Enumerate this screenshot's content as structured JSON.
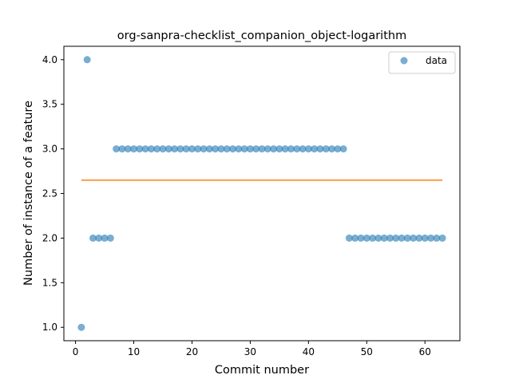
{
  "chart_data": {
    "type": "scatter",
    "title": "org-sanpra-checklist_companion_object-logarithm",
    "xlabel": "Commit number",
    "ylabel": "Number of instance of a feature",
    "xlim": [
      -2,
      66
    ],
    "ylim": [
      0.85,
      4.15
    ],
    "xticks": [
      0,
      10,
      20,
      30,
      40,
      50,
      60
    ],
    "yticks": [
      1.0,
      1.5,
      2.0,
      2.5,
      3.0,
      3.5,
      4.0
    ],
    "xtick_labels": [
      "0",
      "10",
      "20",
      "30",
      "40",
      "50",
      "60"
    ],
    "ytick_labels": [
      "1.0",
      "1.5",
      "2.0",
      "2.5",
      "3.0",
      "3.5",
      "4.0"
    ],
    "legend_position": "top-right",
    "series": [
      {
        "name": "data",
        "kind": "scatter",
        "color": "#1f77b4",
        "x": [
          1,
          2,
          3,
          4,
          5,
          6,
          7,
          8,
          9,
          10,
          11,
          12,
          13,
          14,
          15,
          16,
          17,
          18,
          19,
          20,
          21,
          22,
          23,
          24,
          25,
          26,
          27,
          28,
          29,
          30,
          31,
          32,
          33,
          34,
          35,
          36,
          37,
          38,
          39,
          40,
          41,
          42,
          43,
          44,
          45,
          46,
          47,
          48,
          49,
          50,
          51,
          52,
          53,
          54,
          55,
          56,
          57,
          58,
          59,
          60,
          61,
          62,
          63
        ],
        "y": [
          1,
          4,
          2,
          2,
          2,
          2,
          3,
          3,
          3,
          3,
          3,
          3,
          3,
          3,
          3,
          3,
          3,
          3,
          3,
          3,
          3,
          3,
          3,
          3,
          3,
          3,
          3,
          3,
          3,
          3,
          3,
          3,
          3,
          3,
          3,
          3,
          3,
          3,
          3,
          3,
          3,
          3,
          3,
          3,
          3,
          3,
          2,
          2,
          2,
          2,
          2,
          2,
          2,
          2,
          2,
          2,
          2,
          2,
          2,
          2,
          2,
          2,
          2
        ]
      },
      {
        "kind": "line",
        "color": "#ff7f0e",
        "x": [
          1,
          63
        ],
        "y": [
          2.65,
          2.65
        ]
      }
    ]
  }
}
